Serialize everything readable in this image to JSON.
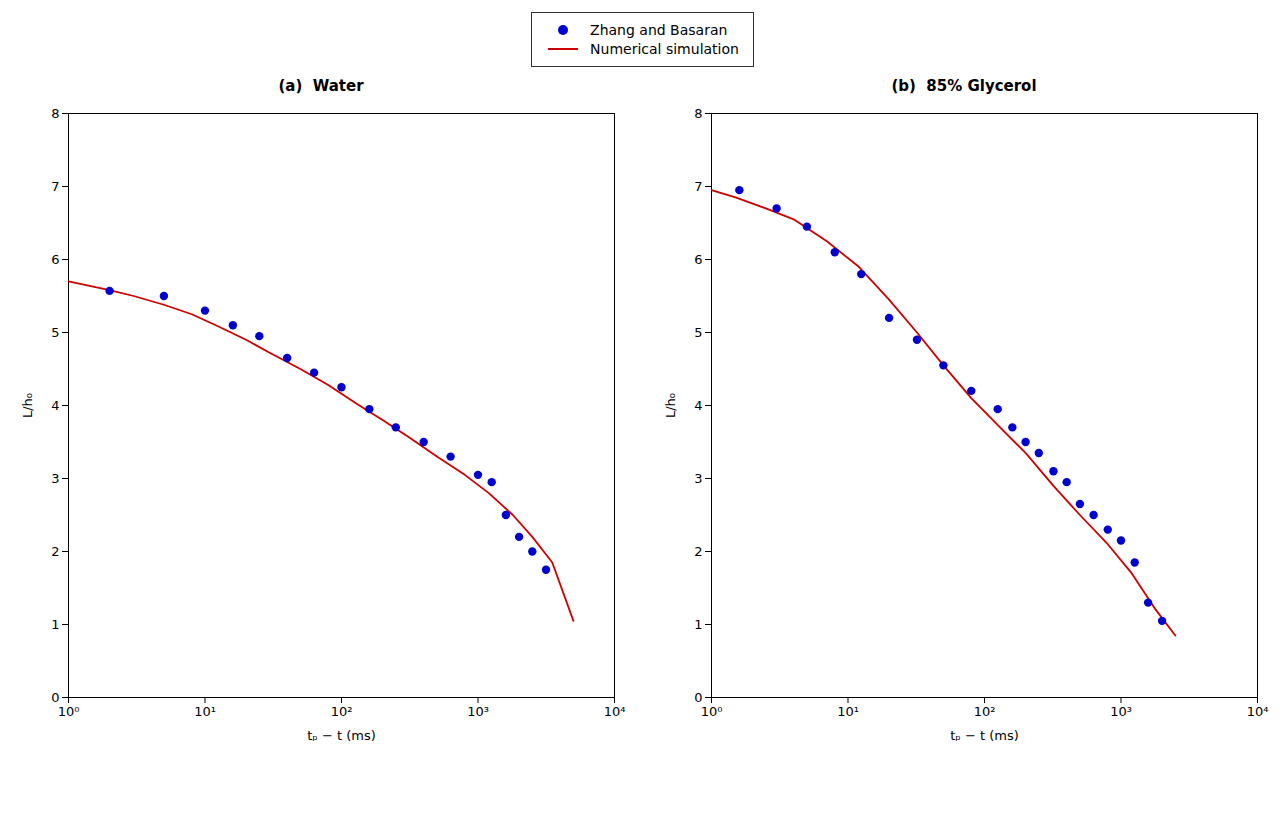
{
  "chart_data": [
    {
      "type": "line",
      "title": "(a)  Water",
      "xlabel": "tₚ − t (ms)",
      "ylabel": "L/h₀",
      "log": "x",
      "legend": "upper center",
      "xlim": [
        1,
        10000
      ],
      "xticks": [
        {
          "value": 1,
          "label": "10⁰"
        },
        {
          "value": 10,
          "label": "10¹"
        },
        {
          "value": 100,
          "label": "10²"
        },
        {
          "value": 1000,
          "label": "10³"
        },
        {
          "value": 10000,
          "label": "10⁴"
        }
      ],
      "ylim": [
        0,
        8
      ],
      "yticks": [
        0,
        1,
        2,
        3,
        4,
        5,
        6,
        7,
        8
      ],
      "series": [
        {
          "name": "Zhang and Basaran",
          "type": "scatter",
          "marker": "circle",
          "color": "#0000cc",
          "x": [
            2.0,
            5.0,
            10.0,
            16.0,
            25.0,
            40.0,
            63.0,
            100.0,
            160.0,
            250.0,
            400.0,
            630.0,
            1000.0,
            1260.0,
            1600.0,
            2000.0,
            2500.0,
            3150.0
          ],
          "values": [
            5.57,
            5.5,
            5.3,
            5.1,
            4.95,
            4.65,
            4.45,
            4.25,
            3.95,
            3.7,
            3.5,
            3.3,
            3.05,
            2.95,
            2.5,
            2.2,
            2.0,
            1.75
          ]
        },
        {
          "name": "Numerical simulation",
          "type": "line",
          "line_style": "solid",
          "color": "#cc0000",
          "x": [
            1.0,
            2.0,
            3.0,
            5.0,
            8.0,
            12.0,
            20.0,
            30.0,
            50.0,
            80.0,
            130.0,
            200.0,
            320.0,
            500.0,
            800.0,
            1200.0,
            1800.0,
            2500.0,
            3500.0,
            5000.0
          ],
          "values": [
            5.7,
            5.58,
            5.5,
            5.38,
            5.25,
            5.1,
            4.9,
            4.72,
            4.5,
            4.28,
            4.02,
            3.8,
            3.55,
            3.3,
            3.05,
            2.8,
            2.5,
            2.2,
            1.85,
            1.05
          ]
        }
      ]
    },
    {
      "type": "line",
      "title": "(b)  85% Glycerol",
      "xlabel": "tₚ − t (ms)",
      "ylabel": "L/h₀",
      "log": "x",
      "legend": "upper center",
      "xlim": [
        1,
        10000
      ],
      "xticks": [
        {
          "value": 1,
          "label": "10⁰"
        },
        {
          "value": 10,
          "label": "10¹"
        },
        {
          "value": 100,
          "label": "10²"
        },
        {
          "value": 1000,
          "label": "10³"
        },
        {
          "value": 10000,
          "label": "10⁴"
        }
      ],
      "ylim": [
        0,
        8
      ],
      "yticks": [
        0,
        1,
        2,
        3,
        4,
        5,
        6,
        7,
        8
      ],
      "series": [
        {
          "name": "Zhang and Basaran",
          "type": "scatter",
          "marker": "circle",
          "color": "#0000cc",
          "x": [
            1.6,
            3.0,
            5.0,
            8.0,
            12.5,
            20.0,
            32.0,
            50.0,
            80.0,
            125.0,
            160.0,
            200.0,
            250.0,
            320.0,
            400.0,
            500.0,
            630.0,
            800.0,
            1000.0,
            1260.0,
            1580.0,
            2000.0
          ],
          "values": [
            6.95,
            6.7,
            6.45,
            6.1,
            5.8,
            5.2,
            4.9,
            4.55,
            4.2,
            3.95,
            3.7,
            3.5,
            3.35,
            3.1,
            2.95,
            2.65,
            2.5,
            2.3,
            2.15,
            1.85,
            1.3,
            1.05
          ]
        },
        {
          "name": "Numerical simulation",
          "type": "line",
          "line_style": "solid",
          "color": "#cc0000",
          "x": [
            1.0,
            1.5,
            2.5,
            4.0,
            7.0,
            12.0,
            20.0,
            32.0,
            50.0,
            80.0,
            130.0,
            200.0,
            320.0,
            500.0,
            800.0,
            1200.0,
            1800.0,
            2500.0
          ],
          "values": [
            6.95,
            6.85,
            6.7,
            6.55,
            6.25,
            5.9,
            5.45,
            5.0,
            4.55,
            4.1,
            3.7,
            3.35,
            2.9,
            2.5,
            2.1,
            1.7,
            1.2,
            0.85
          ]
        }
      ]
    }
  ]
}
